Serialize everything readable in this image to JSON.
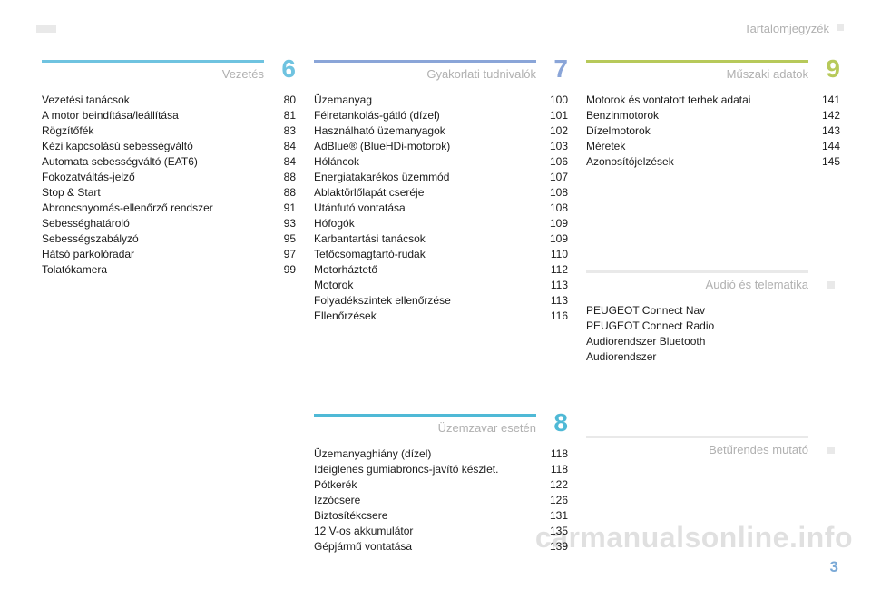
{
  "header": {
    "title": "Tartalomjegyzék"
  },
  "sections": {
    "s6": {
      "title": "Vezetés",
      "number": "6",
      "rule_color": "#6fc3e0",
      "num_color": "#6fc3e0",
      "items": [
        {
          "label": "Vezetési tanácsok",
          "page": "80"
        },
        {
          "label": "A motor beindítása/leállítása",
          "page": "81"
        },
        {
          "label": "Rögzítőfék",
          "page": "83"
        },
        {
          "label": "Kézi kapcsolású sebességváltó",
          "page": "84"
        },
        {
          "label": "Automata sebességváltó (EAT6)",
          "page": "84"
        },
        {
          "label": "Fokozatváltás-jelző",
          "page": "88"
        },
        {
          "label": "Stop & Start",
          "page": "88"
        },
        {
          "label": "Abroncsnyomás-ellenőrző rendszer",
          "page": "91"
        },
        {
          "label": "Sebességhatároló",
          "page": "93"
        },
        {
          "label": "Sebességszabályzó",
          "page": "95"
        },
        {
          "label": "Hátsó parkolóradar",
          "page": "97"
        },
        {
          "label": "Tolatókamera",
          "page": "99"
        }
      ]
    },
    "s7": {
      "title": "Gyakorlati tudnivalók",
      "number": "7",
      "rule_color": "#8aa5d8",
      "num_color": "#8aa5d8",
      "items": [
        {
          "label": "Üzemanyag",
          "page": "100"
        },
        {
          "label": "Félretankolás-gátló (dízel)",
          "page": "101"
        },
        {
          "label": "Használható üzemanyagok",
          "page": "102"
        },
        {
          "label": "AdBlue® (BlueHDi-motorok)",
          "page": "103"
        },
        {
          "label": "Hóláncok",
          "page": "106"
        },
        {
          "label": "Energiatakarékos üzemmód",
          "page": "107"
        },
        {
          "label": "Ablaktörlőlapát cseréje",
          "page": "108"
        },
        {
          "label": "Utánfutó vontatása",
          "page": "108"
        },
        {
          "label": "Hófogók",
          "page": "109"
        },
        {
          "label": "Karbantartási tanácsok",
          "page": "109"
        },
        {
          "label": "Tetőcsomagtartó-rudak",
          "page": "110"
        },
        {
          "label": "Motorháztető",
          "page": "112"
        },
        {
          "label": "Motorok",
          "page": "113"
        },
        {
          "label": "Folyadékszintek ellenőrzése",
          "page": "113"
        },
        {
          "label": "Ellenőrzések",
          "page": "116"
        }
      ]
    },
    "s8": {
      "title": "Üzemzavar esetén",
      "number": "8",
      "rule_color": "#4fb9d6",
      "num_color": "#4fb9d6",
      "items": [
        {
          "label": "Üzemanyaghiány (dízel)",
          "page": "118"
        },
        {
          "label": "Ideiglenes gumiabroncs-javító készlet.",
          "page": "118"
        },
        {
          "label": "Pótkerék",
          "page": "122"
        },
        {
          "label": "Izzócsere",
          "page": "126"
        },
        {
          "label": "Biztosítékcsere",
          "page": "131"
        },
        {
          "label": "12 V-os akkumulátor",
          "page": "135"
        },
        {
          "label": "Gépjármű vontatása",
          "page": "139"
        }
      ]
    },
    "s9": {
      "title": "Műszaki adatok",
      "number": "9",
      "rule_color": "#b7c95a",
      "num_color": "#b7c95a",
      "items": [
        {
          "label": "Motorok és vontatott terhek adatai",
          "page": "141"
        },
        {
          "label": "Benzinmotorok",
          "page": "142"
        },
        {
          "label": "Dízelmotorok",
          "page": "143"
        },
        {
          "label": "Méretek",
          "page": "144"
        },
        {
          "label": "Azonosítójelzések",
          "page": "145"
        }
      ]
    },
    "audio": {
      "title": "Audió és telematika",
      "rule_color": "#e9e9e9",
      "lines": [
        "PEUGEOT Connect Nav",
        "PEUGEOT Connect Radio",
        "Audiorendszer Bluetooth",
        "Audiorendszer"
      ]
    },
    "index": {
      "title": "Betűrendes mutató",
      "rule_color": "#e9e9e9"
    }
  },
  "page_number": "3",
  "watermark": "carmanualsonline.info"
}
